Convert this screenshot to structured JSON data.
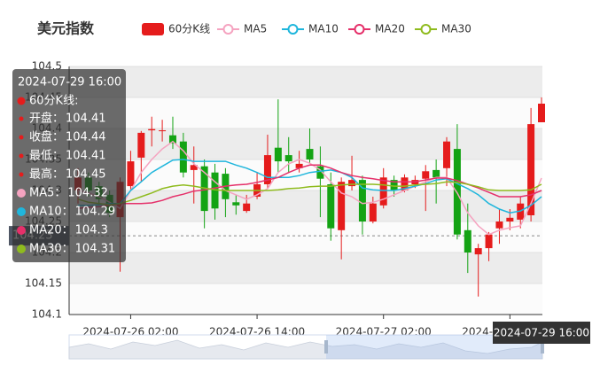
{
  "chart_data": {
    "type": "candlestick",
    "title": "美元指数",
    "categories": [
      null,
      null,
      null,
      null,
      null,
      "2024-07-26 02:00",
      null,
      null,
      null,
      null,
      null,
      null,
      null,
      null,
      null,
      null,
      null,
      "2024-07-26 14:00",
      null,
      null,
      null,
      null,
      null,
      null,
      null,
      null,
      null,
      null,
      null,
      "2024-07-27 02:00",
      null,
      null,
      null,
      null,
      null,
      null,
      null,
      null,
      null,
      null,
      null,
      "2024-07-27 14:00",
      null,
      null,
      "2024-07-29 16:00"
    ],
    "candle": {
      "name": "60分K线",
      "up_color": "#e51c1c",
      "down_color": "#14a314",
      "open": [
        104.3,
        104.321,
        104.307,
        104.293,
        104.257,
        104.307,
        104.353,
        104.397,
        104.396,
        104.389,
        104.379,
        104.333,
        104.339,
        104.329,
        104.327,
        104.281,
        104.267,
        104.29,
        104.31,
        104.369,
        104.357,
        104.336,
        104.367,
        104.339,
        104.31,
        104.236,
        104.307,
        104.317,
        104.25,
        104.276,
        104.317,
        104.3,
        104.31,
        104.319,
        104.333,
        104.336,
        104.367,
        104.236,
        104.197,
        104.207,
        104.239,
        104.25,
        104.253,
        104.26,
        104.41
      ],
      "close": [
        104.321,
        104.3,
        104.286,
        104.264,
        104.314,
        104.347,
        104.393,
        104.399,
        104.397,
        104.376,
        104.329,
        104.341,
        104.267,
        104.271,
        104.286,
        104.276,
        104.279,
        104.31,
        104.357,
        104.347,
        104.347,
        104.343,
        104.35,
        104.319,
        104.239,
        104.314,
        104.317,
        104.25,
        104.279,
        104.321,
        104.3,
        104.321,
        104.317,
        104.331,
        104.321,
        104.379,
        104.229,
        104.2,
        104.207,
        104.229,
        104.25,
        104.256,
        104.279,
        104.407,
        104.44
      ],
      "low": [
        104.279,
        104.29,
        104.276,
        104.257,
        104.169,
        104.3,
        104.314,
        104.371,
        104.379,
        104.367,
        104.321,
        104.279,
        104.239,
        104.253,
        104.257,
        104.261,
        104.264,
        104.286,
        104.304,
        104.329,
        104.329,
        104.329,
        104.343,
        104.257,
        104.219,
        104.189,
        104.3,
        104.229,
        104.247,
        104.271,
        104.29,
        104.297,
        104.304,
        104.267,
        104.279,
        104.307,
        104.221,
        104.167,
        104.129,
        104.186,
        104.214,
        104.236,
        104.239,
        104.25,
        104.41
      ],
      "high": [
        104.336,
        104.329,
        104.314,
        104.3,
        104.321,
        104.364,
        104.396,
        104.419,
        104.414,
        104.419,
        104.393,
        104.371,
        104.35,
        104.343,
        104.336,
        104.293,
        104.293,
        104.329,
        104.39,
        104.447,
        104.386,
        104.364,
        104.4,
        104.371,
        104.329,
        104.321,
        104.356,
        104.324,
        104.29,
        104.336,
        104.324,
        104.326,
        104.324,
        104.341,
        104.35,
        104.386,
        104.407,
        104.279,
        104.214,
        104.233,
        104.27,
        104.27,
        104.29,
        104.433,
        104.45
      ]
    },
    "series": [
      {
        "name": "MA5",
        "color": "#f5a3c0",
        "values": [
          104.3,
          104.296,
          104.29,
          104.281,
          104.271,
          104.3,
          104.329,
          104.35,
          104.367,
          104.379,
          104.364,
          104.343,
          104.329,
          104.314,
          104.3,
          104.293,
          104.286,
          104.293,
          104.303,
          104.329,
          104.343,
          104.35,
          104.344,
          104.333,
          104.314,
          104.296,
          104.29,
          104.279,
          104.281,
          104.286,
          104.293,
          104.3,
          104.307,
          104.314,
          104.321,
          104.321,
          104.296,
          104.264,
          104.243,
          104.229,
          104.236,
          104.24,
          104.243,
          104.279,
          104.32
        ]
      },
      {
        "name": "MA10",
        "color": "#1fb6dc",
        "values": [
          104.276,
          104.276,
          104.277,
          104.279,
          104.279,
          104.3,
          104.314,
          104.329,
          104.339,
          104.349,
          104.35,
          104.347,
          104.347,
          104.347,
          104.347,
          104.341,
          104.336,
          104.329,
          104.321,
          104.321,
          104.321,
          104.324,
          104.329,
          104.331,
          104.333,
          104.329,
          104.321,
          104.304,
          104.301,
          104.3,
          104.3,
          104.303,
          104.307,
          104.311,
          104.317,
          104.319,
          104.311,
          104.303,
          104.293,
          104.279,
          104.27,
          104.264,
          104.267,
          104.276,
          104.29
        ]
      },
      {
        "name": "MA20",
        "color": "#e5306a",
        "values": [
          104.271,
          104.273,
          104.274,
          104.276,
          104.279,
          104.279,
          104.279,
          104.28,
          104.284,
          104.29,
          104.294,
          104.299,
          104.301,
          104.304,
          104.307,
          104.309,
          104.31,
          104.313,
          104.317,
          104.321,
          104.329,
          104.336,
          104.341,
          104.341,
          104.336,
          104.329,
          104.324,
          104.321,
          104.319,
          104.316,
          104.314,
          104.314,
          104.314,
          104.317,
          104.32,
          104.32,
          104.316,
          104.31,
          104.304,
          104.297,
          104.29,
          104.29,
          104.29,
          104.293,
          104.3
        ]
      },
      {
        "name": "MA30",
        "color": "#8fbb1e",
        "values": [
          104.286,
          104.281,
          104.279,
          104.277,
          104.279,
          104.284,
          104.29,
          104.296,
          104.303,
          104.307,
          104.309,
          104.307,
          104.304,
          104.301,
          104.3,
          104.3,
          104.3,
          104.3,
          104.3,
          104.301,
          104.303,
          104.304,
          104.306,
          104.307,
          104.307,
          104.309,
          104.31,
          104.31,
          104.31,
          104.309,
          104.307,
          104.307,
          104.309,
          104.31,
          104.311,
          104.314,
          104.313,
          104.31,
          104.306,
          104.301,
          104.3,
          104.3,
          104.3,
          104.301,
          104.31
        ]
      }
    ],
    "ylim": [
      104.1,
      104.5
    ],
    "yticks": [
      104.1,
      104.15,
      104.2,
      104.25,
      104.3,
      104.35,
      104.4,
      104.45,
      104.5
    ],
    "grid": true,
    "tooltip": {
      "heading": "60分K线:",
      "labels": [
        "开盘：",
        "收盘：",
        "最低：",
        "最高：",
        "MA5：",
        "MA10：",
        "MA20：",
        "MA30："
      ]
    },
    "crosshair": {
      "index": 44,
      "y": 104.227,
      "y_label": "104.23"
    }
  }
}
